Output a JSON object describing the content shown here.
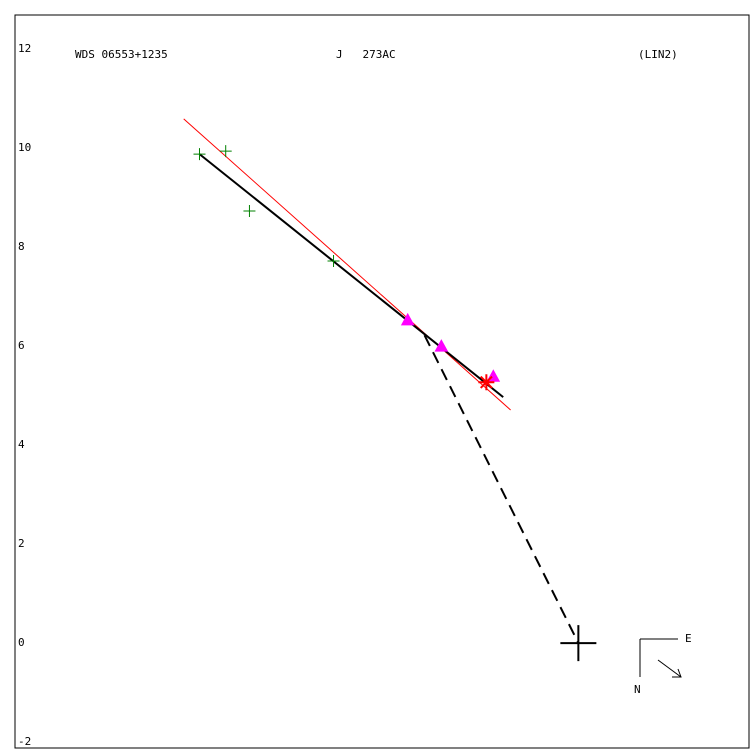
{
  "chart_data": {
    "type": "scatter",
    "header_left": "WDS 06553+1235",
    "header_center": "J   273AC",
    "header_right": "(LIN2)",
    "compass_east": "E",
    "compass_north": "N",
    "xlim": [
      -11.39,
      3.45
    ],
    "ylim": [
      -2.12,
      12.69
    ],
    "yticks": [
      -2,
      0,
      2,
      4,
      6,
      8,
      10,
      12
    ],
    "series": [
      {
        "marker": "plus",
        "color": "#008000",
        "x": [
          -7.66,
          -7.13,
          -6.65,
          -4.95
        ],
        "values": [
          9.88,
          9.94,
          8.73,
          7.72
        ]
      },
      {
        "marker": "triangle",
        "color": "#ff00ff",
        "x": [
          -3.45,
          -2.77,
          -1.72
        ],
        "values": [
          6.53,
          6.0,
          5.39
        ]
      },
      {
        "marker": "star",
        "color": "#ff0000",
        "x": [
          -1.86
        ],
        "values": [
          5.27
        ]
      },
      {
        "marker": "big-plus",
        "color": "#000000",
        "x": [
          0
        ],
        "values": [
          0
        ]
      }
    ],
    "lines": [
      {
        "color": "#ff0000",
        "width": 1,
        "dash": false,
        "x": [
          -7.98,
          -1.37
        ],
        "values": [
          10.59,
          4.71
        ]
      },
      {
        "color": "#000000",
        "width": 2,
        "dash": false,
        "x": [
          -7.66,
          -1.52
        ],
        "values": [
          9.88,
          4.97
        ]
      },
      {
        "color": "#000000",
        "width": 2,
        "dash": true,
        "x": [
          -3.11,
          0
        ],
        "values": [
          6.22,
          0
        ]
      }
    ]
  }
}
